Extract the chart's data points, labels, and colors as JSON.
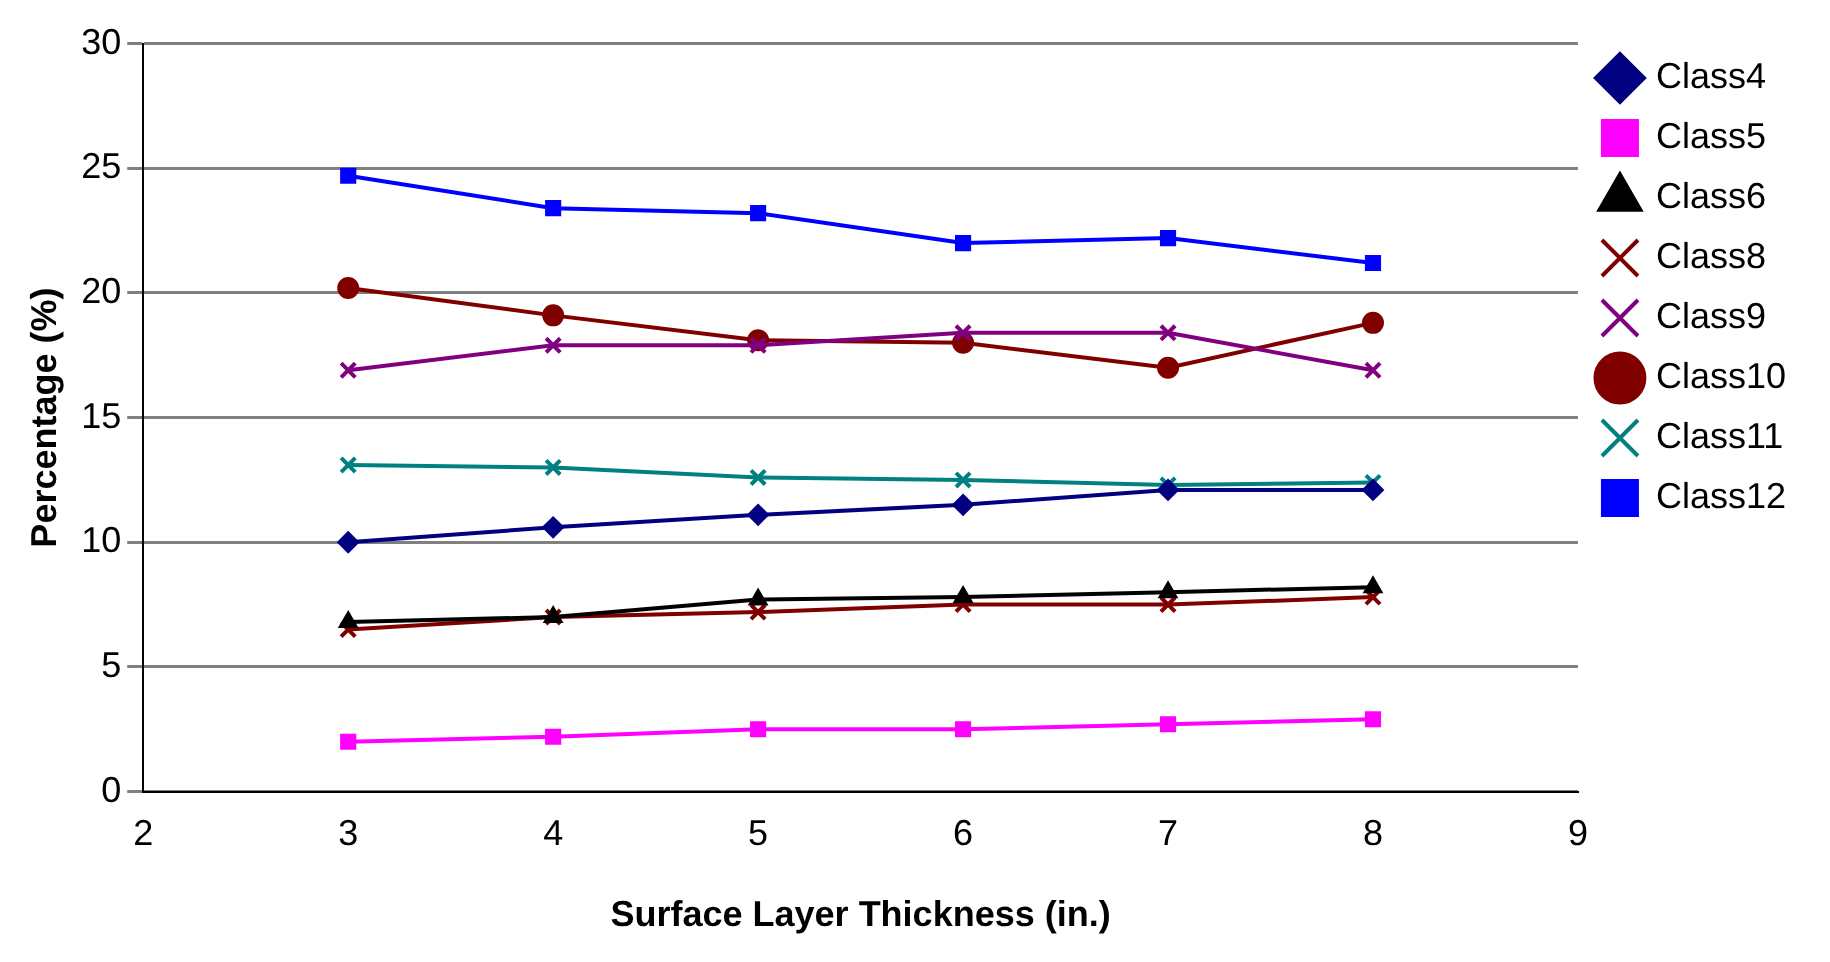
{
  "chart_data": {
    "type": "line",
    "xlabel": "Surface Layer Thickness (in.)",
    "ylabel": "Percentage (%)",
    "x": [
      3,
      4,
      5,
      6,
      7,
      8
    ],
    "xlim": [
      2,
      9
    ],
    "xticks": [
      2,
      3,
      4,
      5,
      6,
      7,
      8,
      9
    ],
    "ylim": [
      0,
      30
    ],
    "yticks": [
      0,
      5,
      10,
      15,
      20,
      25,
      30
    ],
    "grid": "y",
    "legend": "right",
    "series": [
      {
        "name": "Class4",
        "color": "#000080",
        "marker": "diamond",
        "values": [
          10.0,
          10.6,
          11.1,
          11.5,
          12.1,
          12.1
        ]
      },
      {
        "name": "Class5",
        "color": "#ff00ff",
        "marker": "square",
        "values": [
          2.0,
          2.2,
          2.5,
          2.5,
          2.7,
          2.9
        ]
      },
      {
        "name": "Class6",
        "color": "#000000",
        "marker": "triangle",
        "values": [
          6.8,
          7.0,
          7.7,
          7.8,
          8.0,
          8.2
        ]
      },
      {
        "name": "Class8",
        "color": "#800000",
        "marker": "cross",
        "values": [
          6.5,
          7.0,
          7.2,
          7.5,
          7.5,
          7.8
        ]
      },
      {
        "name": "Class9",
        "color": "#800080",
        "marker": "cross",
        "values": [
          16.9,
          17.9,
          17.9,
          18.4,
          18.4,
          16.9
        ]
      },
      {
        "name": "Class10",
        "color": "#800000",
        "marker": "circle",
        "values": [
          20.2,
          19.1,
          18.1,
          18.0,
          17.0,
          18.8
        ]
      },
      {
        "name": "Class11",
        "color": "#008080",
        "marker": "cross",
        "values": [
          13.1,
          13.0,
          12.6,
          12.5,
          12.3,
          12.4
        ]
      },
      {
        "name": "Class12",
        "color": "#0000ff",
        "marker": "square",
        "values": [
          24.7,
          23.4,
          23.2,
          22.0,
          22.2,
          21.2
        ]
      }
    ]
  }
}
